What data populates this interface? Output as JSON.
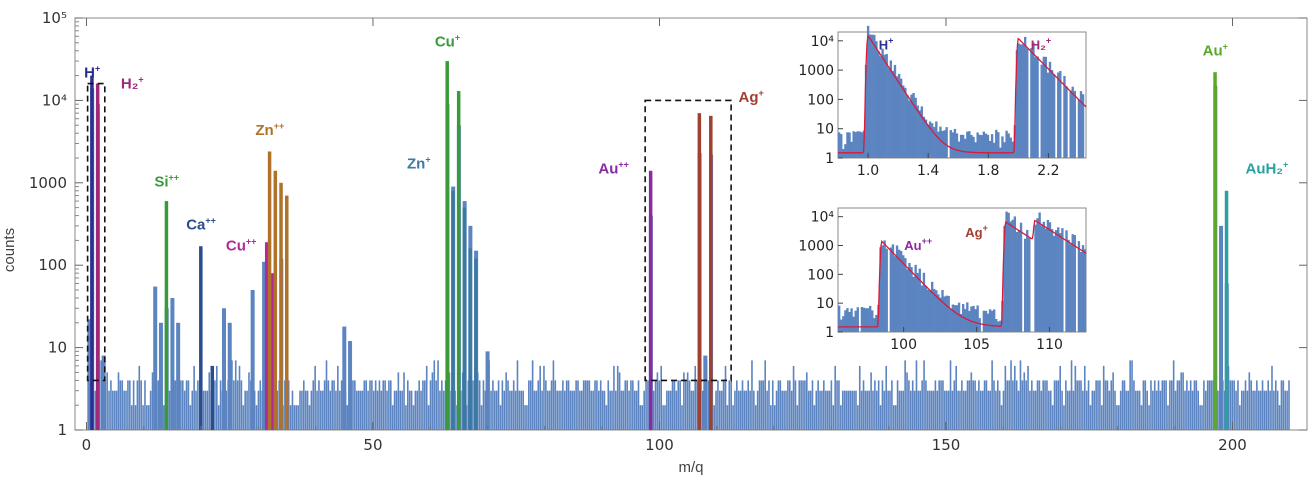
{
  "chart_data": [
    {
      "type": "bar",
      "xlabel": "m/q",
      "ylabel": "counts",
      "yscale": "log",
      "xlim": [
        -2,
        213
      ],
      "ylim": [
        1,
        100000
      ],
      "x_ticks": [
        "0",
        "50",
        "100",
        "150",
        "200"
      ],
      "y_ticks": [
        "1",
        "10",
        "100",
        "1000",
        "10⁴",
        "10⁵"
      ],
      "grid": false,
      "background_noise_level": 3,
      "series": [
        {
          "color": "#5b84c0",
          "peaks": [
            {
              "x": 0.5,
              "y": 22
            },
            {
              "x": 1.0,
              "y": 14000
            },
            {
              "x": 2.0,
              "y": 9000
            },
            {
              "x": 3.0,
              "y": 8
            },
            {
              "x": 12,
              "y": 55
            },
            {
              "x": 13,
              "y": 20
            },
            {
              "x": 14,
              "y": 30
            },
            {
              "x": 15,
              "y": 40
            },
            {
              "x": 16,
              "y": 20
            },
            {
              "x": 24,
              "y": 30
            },
            {
              "x": 25,
              "y": 20
            },
            {
              "x": 29,
              "y": 50
            },
            {
              "x": 31,
              "y": 110
            },
            {
              "x": 34,
              "y": 120
            },
            {
              "x": 45,
              "y": 18
            },
            {
              "x": 46,
              "y": 12
            },
            {
              "x": 63,
              "y": 9000
            },
            {
              "x": 64,
              "y": 900
            },
            {
              "x": 65,
              "y": 5000
            },
            {
              "x": 66,
              "y": 600
            },
            {
              "x": 67,
              "y": 300
            },
            {
              "x": 68,
              "y": 150
            },
            {
              "x": 70,
              "y": 9
            },
            {
              "x": 98.5,
              "y": 400
            },
            {
              "x": 107,
              "y": 2300
            },
            {
              "x": 108,
              "y": 8
            },
            {
              "x": 109,
              "y": 2200
            },
            {
              "x": 197,
              "y": 15000
            },
            {
              "x": 198,
              "y": 300
            },
            {
              "x": 199,
              "y": 60
            }
          ]
        },
        {
          "name": "H⁺",
          "color": "#2b2f8f",
          "peaks": [
            {
              "x": 1.0,
              "y": 20000
            }
          ]
        },
        {
          "name": "H₂⁺",
          "color": "#a02a7a",
          "peaks": [
            {
              "x": 2.0,
              "y": 16000
            }
          ]
        },
        {
          "name": "Si⁺⁺",
          "color": "#3a9a3a",
          "peaks": [
            {
              "x": 14.0,
              "y": 600
            }
          ]
        },
        {
          "name": "Ca⁺⁺",
          "color": "#2a4d8f",
          "peaks": [
            {
              "x": 20.0,
              "y": 170
            },
            {
              "x": 22,
              "y": 6
            }
          ]
        },
        {
          "name": "Cu⁺⁺",
          "color": "#b02a9a",
          "peaks": [
            {
              "x": 31.5,
              "y": 190
            },
            {
              "x": 32.5,
              "y": 80
            }
          ]
        },
        {
          "name": "Zn⁺⁺",
          "color": "#b0722a",
          "peaks": [
            {
              "x": 32.0,
              "y": 2400
            },
            {
              "x": 33.0,
              "y": 1400
            },
            {
              "x": 34.0,
              "y": 1000
            },
            {
              "x": 35.0,
              "y": 700
            }
          ]
        },
        {
          "name": "Cu⁺",
          "color": "#3a9a3a",
          "peaks": [
            {
              "x": 63.0,
              "y": 30000
            },
            {
              "x": 65.0,
              "y": 13000
            }
          ]
        },
        {
          "name": "Zn⁺",
          "color": "#3a7aa0",
          "peaks": [
            {
              "x": 64.0,
              "y": 800
            },
            {
              "x": 66.0,
              "y": 500
            },
            {
              "x": 67.0,
              "y": 160
            },
            {
              "x": 68.0,
              "y": 120
            }
          ]
        },
        {
          "name": "Au⁺⁺",
          "color": "#8a2aa0",
          "peaks": [
            {
              "x": 98.5,
              "y": 1400
            }
          ]
        },
        {
          "name": "Ag⁺",
          "color": "#a04030",
          "peaks": [
            {
              "x": 107.0,
              "y": 7000
            },
            {
              "x": 109.0,
              "y": 6500
            }
          ]
        },
        {
          "name": "Au⁺",
          "color": "#5aaa2a",
          "peaks": [
            {
              "x": 197.0,
              "y": 22000
            }
          ]
        },
        {
          "name": "AuH₂⁺",
          "color": "#2aa0a0",
          "peaks": [
            {
              "x": 199.0,
              "y": 800
            }
          ]
        }
      ],
      "peak_labels": [
        {
          "text": "H",
          "sup": "+",
          "color": "#2b2f8f",
          "x": 1.0,
          "y": 19000
        },
        {
          "text": "H₂",
          "sup": "+",
          "color": "#a02a7a",
          "x": 8.0,
          "y": 14000
        },
        {
          "text": "Si",
          "sup": "++",
          "color": "#3a9a3a",
          "x": 14.0,
          "y": 900
        },
        {
          "text": "Ca",
          "sup": "++",
          "color": "#2a4d8f",
          "x": 20.0,
          "y": 270
        },
        {
          "text": "Cu",
          "sup": "++",
          "color": "#b02a9a",
          "x": 27.0,
          "y": 150
        },
        {
          "text": "Zn",
          "sup": "++",
          "color": "#b0722a",
          "x": 32.0,
          "y": 3800
        },
        {
          "text": "Cu",
          "sup": "+",
          "color": "#3a9a3a",
          "x": 63.0,
          "y": 45000
        },
        {
          "text": "Zn",
          "sup": "+",
          "color": "#3a7aa0",
          "x": 58.0,
          "y": 1500
        },
        {
          "text": "Au",
          "sup": "++",
          "color": "#8a2aa0",
          "x": 92.0,
          "y": 1300
        },
        {
          "text": "Ag",
          "sup": "+",
          "color": "#a04030",
          "x": 116.0,
          "y": 9500
        },
        {
          "text": "Au",
          "sup": "+",
          "color": "#5aaa2a",
          "x": 197.0,
          "y": 35000
        },
        {
          "text": "AuH₂",
          "sup": "+",
          "color": "#2aa0a0",
          "x": 206.0,
          "y": 1300
        }
      ],
      "highlight_boxes": [
        {
          "x": [
            0.2,
            3.2
          ],
          "y": [
            4,
            16000
          ]
        },
        {
          "x": [
            97.5,
            112.5
          ],
          "y": [
            4,
            10000
          ]
        }
      ]
    },
    {
      "type": "line",
      "xlim": [
        0.8,
        2.45
      ],
      "ylim": [
        1,
        20000
      ],
      "yscale": "log",
      "x_ticks": [
        "1.0",
        "1.4",
        "1.8",
        "2.2"
      ],
      "y_ticks": [
        "1",
        "10",
        "100",
        "1000",
        "10⁴"
      ],
      "hist_color": "#5b84c0",
      "fit_color": "#d81b3a",
      "peaks": [
        {
          "x": 1.0,
          "y": 15000,
          "decay": 6
        },
        {
          "x": 2.0,
          "y": 12000,
          "decay": 4
        }
      ],
      "labels": [
        {
          "text": "H",
          "sup": "+",
          "color": "#2b2f8f",
          "x": 1.12,
          "y": 5000
        },
        {
          "text": "H₂",
          "sup": "+",
          "color": "#a02a7a",
          "x": 2.15,
          "y": 5000
        }
      ]
    },
    {
      "type": "line",
      "xlim": [
        95.5,
        112.5
      ],
      "ylim": [
        1,
        20000
      ],
      "yscale": "log",
      "x_ticks": [
        "100",
        "105",
        "110"
      ],
      "y_ticks": [
        "1",
        "10",
        "100",
        "1000",
        "10⁴"
      ],
      "hist_color": "#5b84c0",
      "fit_color": "#d81b3a",
      "peaks": [
        {
          "x": 98.5,
          "y": 1400,
          "decay": 0.4
        },
        {
          "x": 107.0,
          "y": 6500,
          "decay": 0.25
        },
        {
          "x": 109.0,
          "y": 6000,
          "decay": 0.25
        }
      ],
      "labels": [
        {
          "text": "Au",
          "sup": "++",
          "color": "#8a2aa0",
          "x": 101.0,
          "y": 700
        },
        {
          "text": "Ag",
          "sup": "+",
          "color": "#a04030",
          "x": 105.0,
          "y": 2000
        }
      ]
    }
  ]
}
